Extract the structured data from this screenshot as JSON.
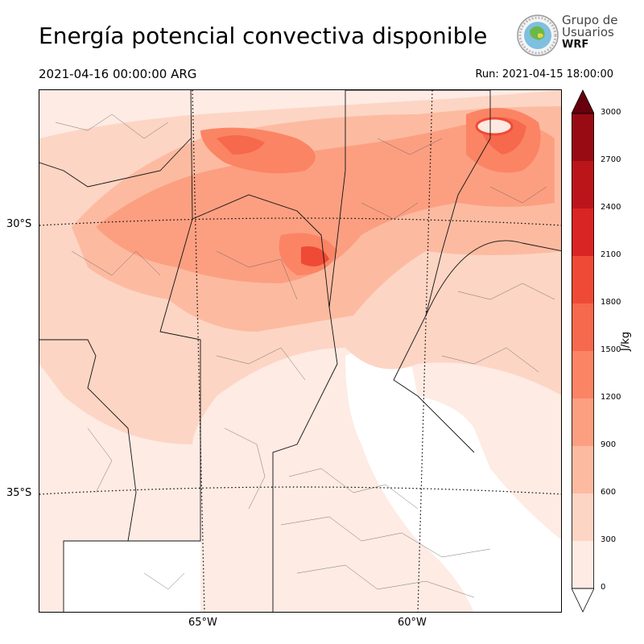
{
  "header": {
    "title": "Energía potencial convectiva disponible",
    "valid_time": "2021-04-16 00:00:00 ARG",
    "run_label": "Run: 2021-04-15 18:00:00"
  },
  "logo": {
    "line1": "Grupo de",
    "line2": "Usuarios",
    "line3": "WRF",
    "icon": "globe-emblem-icon"
  },
  "map": {
    "lat_labels": [
      "30°S",
      "35°S"
    ],
    "lon_labels": [
      "65°W",
      "60°W"
    ],
    "gridlines": "dotted"
  },
  "colorbar": {
    "unit": "J/kg",
    "ticks": [
      "0",
      "300",
      "600",
      "900",
      "1200",
      "1500",
      "1800",
      "2100",
      "2400",
      "2700",
      "3000"
    ],
    "levels": [
      {
        "from": 0,
        "to": 300,
        "color": "#fdebe4"
      },
      {
        "from": 300,
        "to": 600,
        "color": "#fdd5c4"
      },
      {
        "from": 600,
        "to": 900,
        "color": "#fcbba1"
      },
      {
        "from": 900,
        "to": 1200,
        "color": "#fc9f81"
      },
      {
        "from": 1200,
        "to": 1500,
        "color": "#fb8464"
      },
      {
        "from": 1500,
        "to": 1800,
        "color": "#f6694c"
      },
      {
        "from": 1800,
        "to": 2100,
        "color": "#ef4a36"
      },
      {
        "from": 2100,
        "to": 2400,
        "color": "#d92523"
      },
      {
        "from": 2400,
        "to": 2700,
        "color": "#bb151a"
      },
      {
        "from": 2700,
        "to": 3000,
        "color": "#980b13"
      }
    ],
    "extend_max_color": "#67000d",
    "extend_min_color": "#ffffff"
  }
}
